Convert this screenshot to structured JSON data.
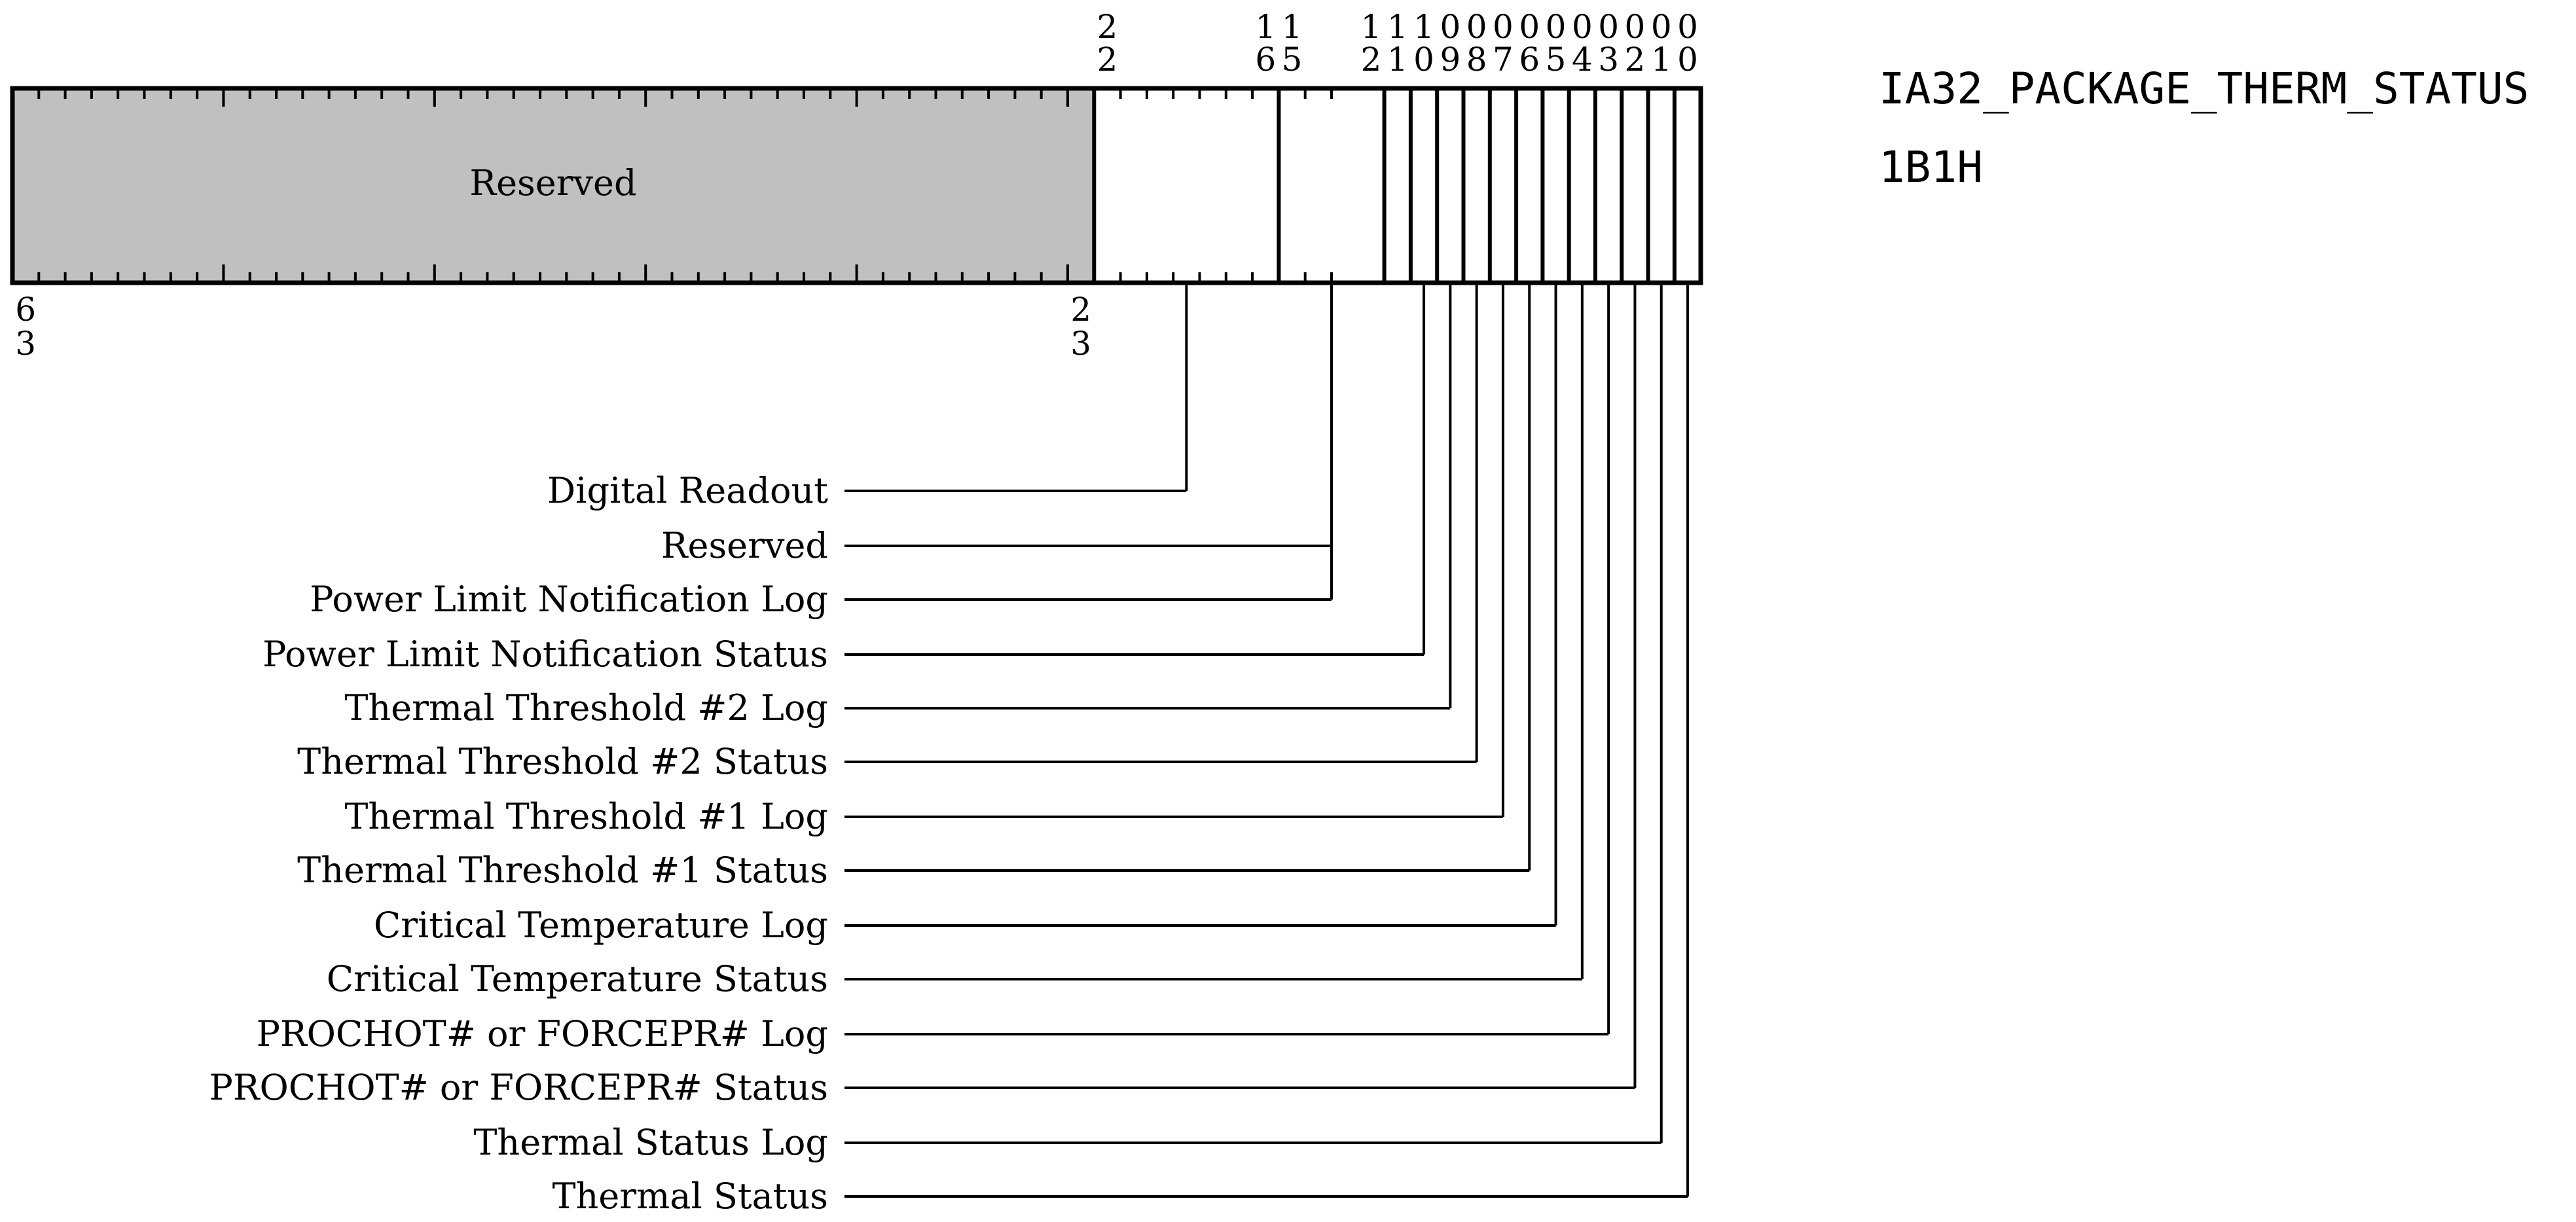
{
  "register": {
    "name": "IA32_PACKAGE_THERM_STATUS",
    "address": "1B1H"
  },
  "reserved_block": {
    "label": "Reserved",
    "fill": "#c0c0c0"
  },
  "top_bit_numbers": [
    {
      "bit": "22",
      "digits": [
        "2",
        "2"
      ]
    },
    {
      "bit": "16",
      "digits": [
        "1",
        "6"
      ]
    },
    {
      "bit": "15",
      "digits": [
        "1",
        "5"
      ]
    },
    {
      "bit": "12",
      "digits": [
        "1",
        "2"
      ]
    },
    {
      "bit": "11",
      "digits": [
        "1",
        "1"
      ]
    },
    {
      "bit": "10",
      "digits": [
        "1",
        "0"
      ]
    },
    {
      "bit": "9",
      "digits": [
        "0",
        "9"
      ]
    },
    {
      "bit": "8",
      "digits": [
        "0",
        "8"
      ]
    },
    {
      "bit": "7",
      "digits": [
        "0",
        "7"
      ]
    },
    {
      "bit": "6",
      "digits": [
        "0",
        "6"
      ]
    },
    {
      "bit": "5",
      "digits": [
        "0",
        "5"
      ]
    },
    {
      "bit": "4",
      "digits": [
        "0",
        "4"
      ]
    },
    {
      "bit": "3",
      "digits": [
        "0",
        "3"
      ]
    },
    {
      "bit": "2",
      "digits": [
        "0",
        "2"
      ]
    },
    {
      "bit": "1",
      "digits": [
        "0",
        "1"
      ]
    },
    {
      "bit": "0",
      "digits": [
        "0",
        "0"
      ]
    }
  ],
  "bottom_bit_numbers": [
    {
      "bit": "63",
      "digits": [
        "6",
        "3"
      ]
    },
    {
      "bit": "23",
      "digits": [
        "2",
        "3"
      ]
    }
  ],
  "fields": [
    {
      "label": "Digital Readout",
      "bits": "22:16"
    },
    {
      "label": "Reserved",
      "bits": "15:12"
    },
    {
      "label": "Power Limit Notification Log",
      "bits": "11"
    },
    {
      "label": "Power Limit Notification Status",
      "bits": "10"
    },
    {
      "label": "Thermal Threshold #2 Log",
      "bits": "9"
    },
    {
      "label": "Thermal Threshold #2 Status",
      "bits": "8"
    },
    {
      "label": "Thermal Threshold #1 Log",
      "bits": "7"
    },
    {
      "label": "Thermal Threshold #1 Status",
      "bits": "6"
    },
    {
      "label": "Critical Temperature Log",
      "bits": "5"
    },
    {
      "label": "Critical Temperature Status",
      "bits": "4"
    },
    {
      "label": "PROCHOT# or FORCEPR# Log",
      "bits": "3"
    },
    {
      "label": "PROCHOT# or FORCEPR# Status",
      "bits": "2"
    },
    {
      "label": "Thermal Status Log",
      "bits": "1"
    },
    {
      "label": "Thermal Status",
      "bits": "0"
    }
  ]
}
